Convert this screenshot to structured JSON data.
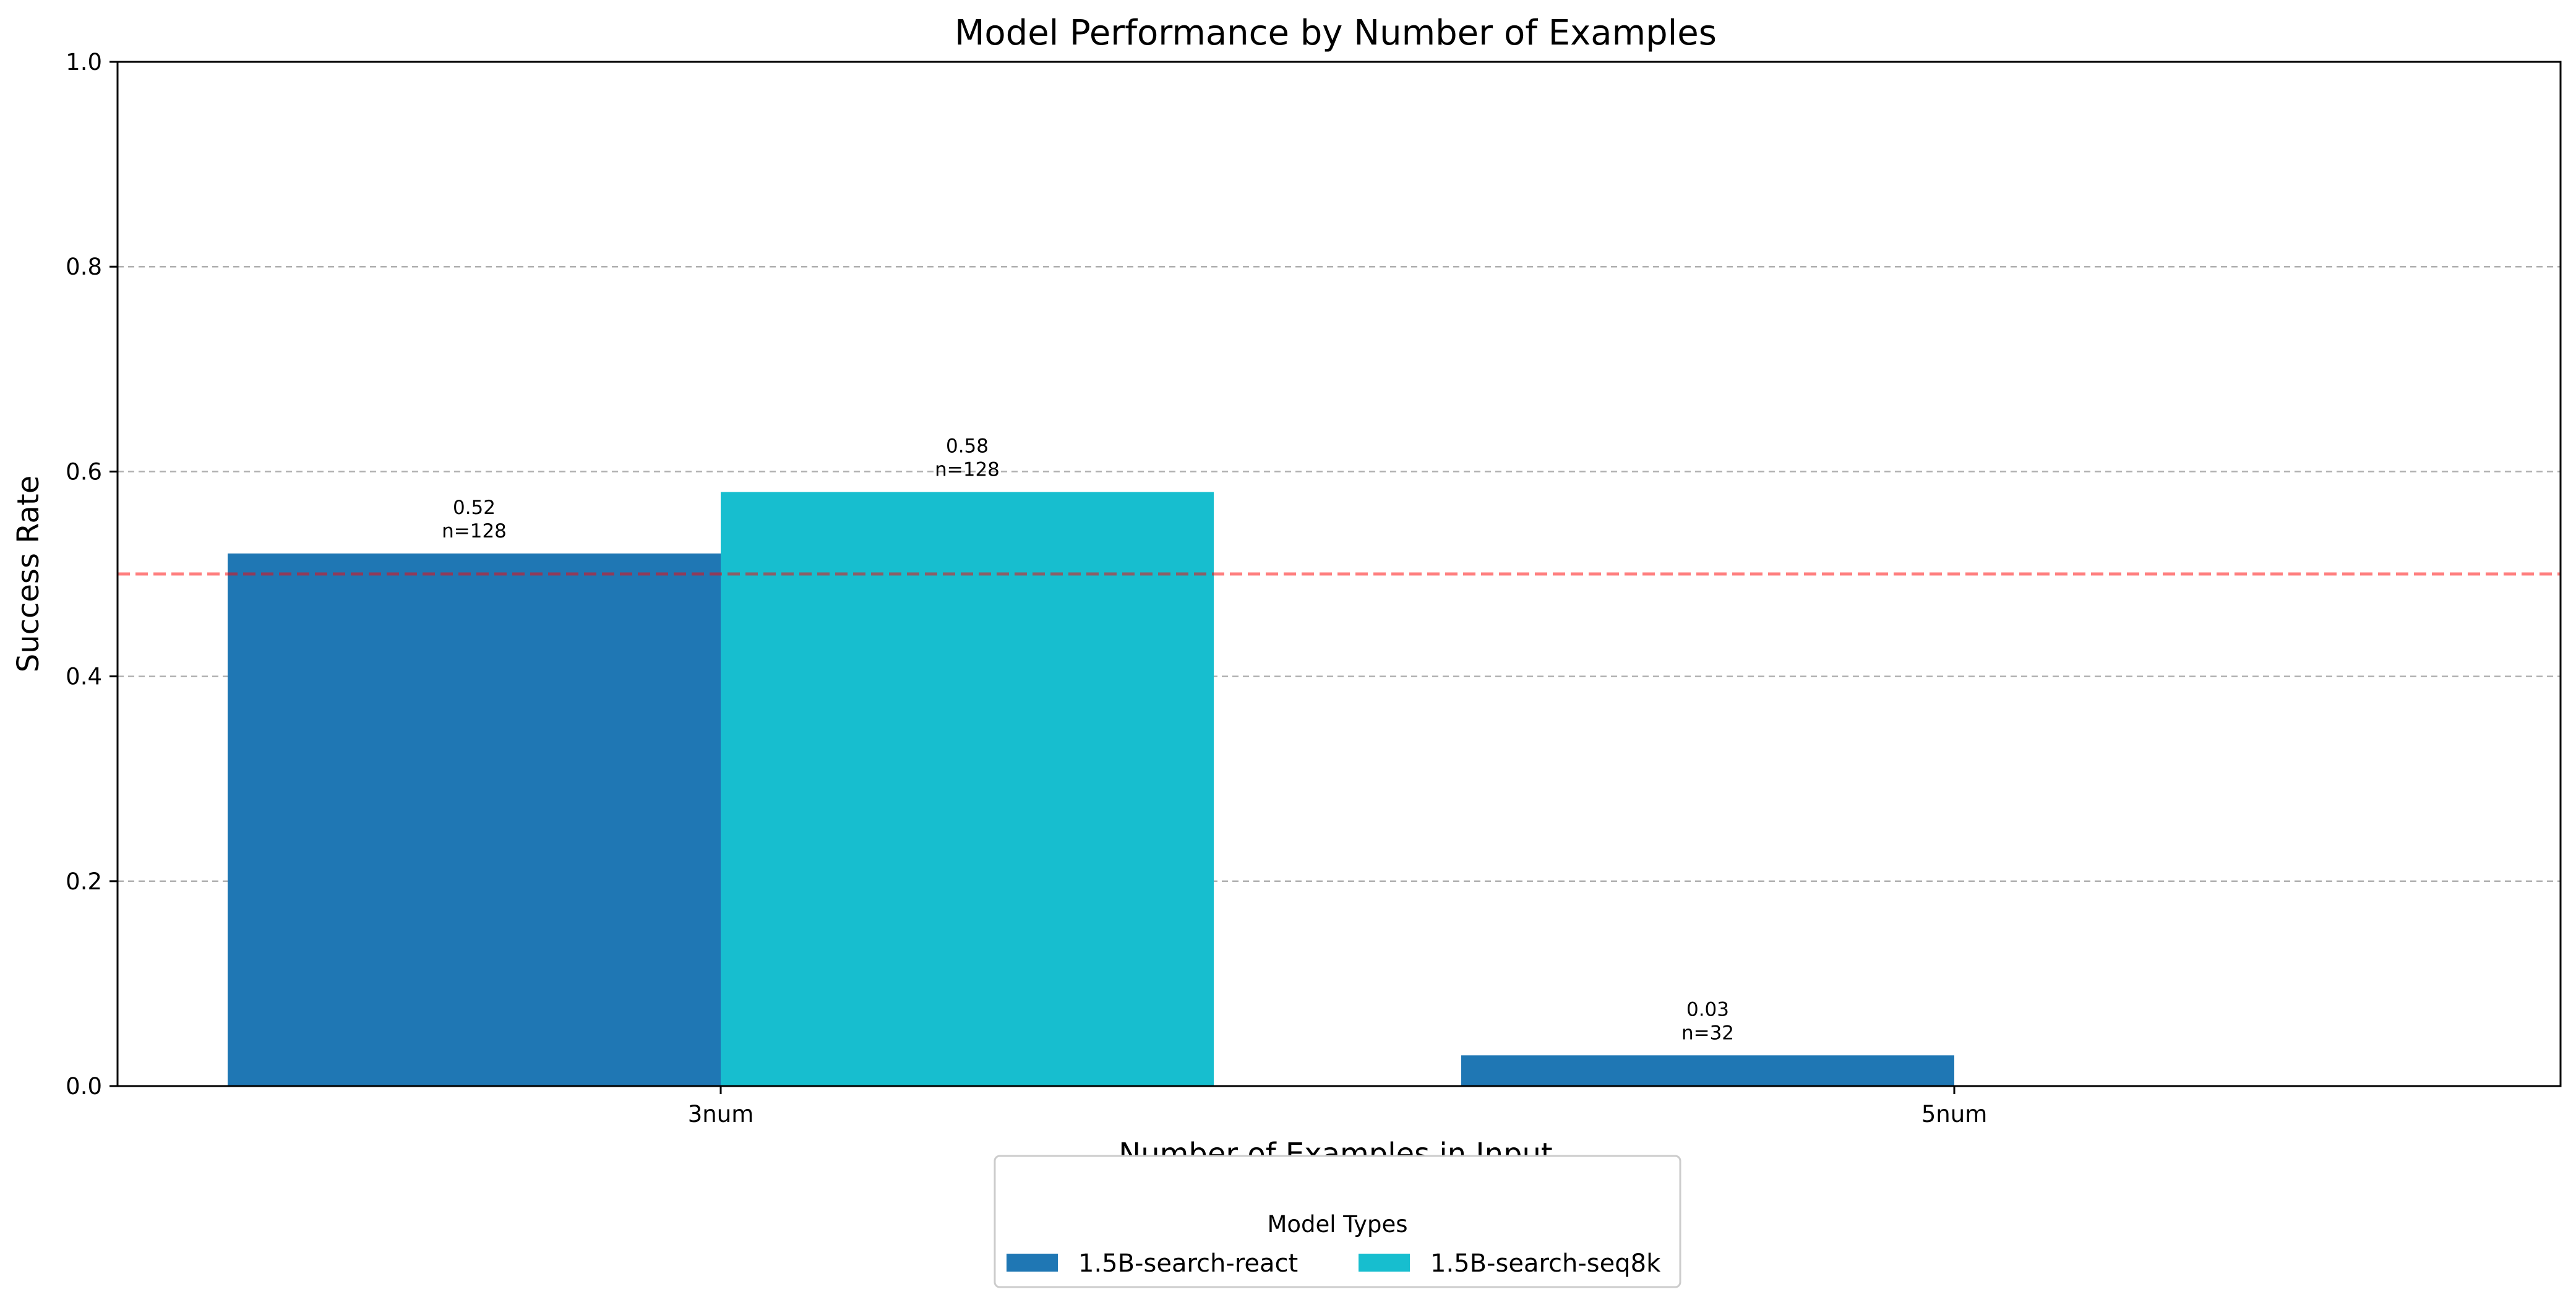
{
  "chart_data": {
    "type": "bar",
    "title": "Model Performance by Number of Examples",
    "xlabel": "Number of Examples in Input",
    "ylabel": "Success Rate",
    "ylim": [
      0,
      1.0
    ],
    "yticks": [
      "0.0",
      "0.2",
      "0.4",
      "0.6",
      "0.8",
      "1.0"
    ],
    "categories": [
      "3num",
      "5num"
    ],
    "series": [
      {
        "name": "1.5B-search-react",
        "color": "#1f77b4",
        "values": [
          0.52,
          0.03
        ],
        "value_labels": [
          "0.52",
          "0.03"
        ],
        "count_labels": [
          "n=128",
          "n=32"
        ]
      },
      {
        "name": "1.5B-search-seq8k",
        "color": "#17becf",
        "values": [
          0.58,
          null
        ],
        "value_labels": [
          "0.58",
          null
        ],
        "count_labels": [
          "n=128",
          null
        ]
      }
    ],
    "reference_line": {
      "y": 0.5,
      "color": "#ff0000",
      "style": "dashed"
    },
    "grid": {
      "y": true,
      "x": false,
      "style": "dashed"
    },
    "legend": {
      "title": "Model Types",
      "placement": "bottom-center"
    }
  }
}
